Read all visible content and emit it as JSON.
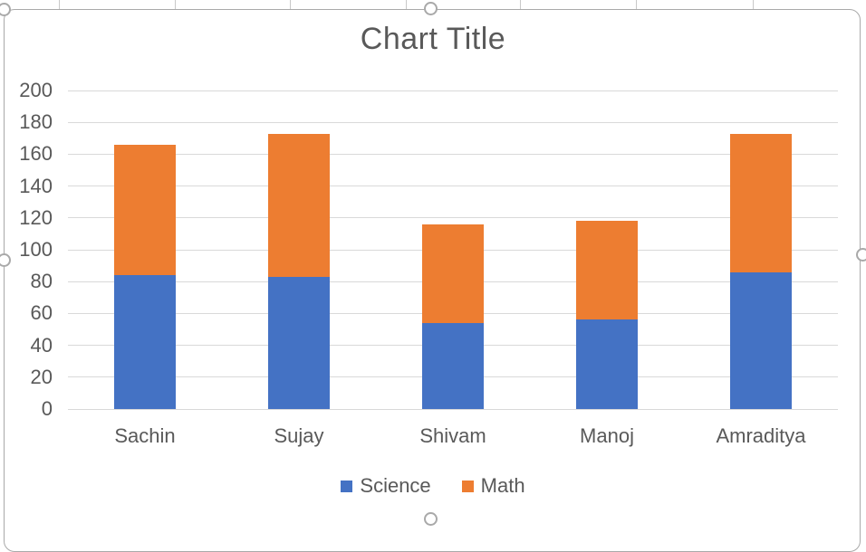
{
  "title": "Chart Title",
  "colors": {
    "science": "#4472C4",
    "math": "#ED7D31",
    "gridline": "#D9D9D9",
    "text": "#595959",
    "frame_border": "#A9A9A9"
  },
  "legend": {
    "items": [
      {
        "label": "Science",
        "color": "#4472C4"
      },
      {
        "label": "Math",
        "color": "#ED7D31"
      }
    ]
  },
  "chart_data": {
    "type": "bar",
    "stacked": true,
    "title": "Chart Title",
    "categories": [
      "Sachin",
      "Sujay",
      "Shivam",
      "Manoj",
      "Amraditya"
    ],
    "series": [
      {
        "name": "Science",
        "color": "#4472C4",
        "values": [
          84,
          83,
          54,
          56,
          86
        ]
      },
      {
        "name": "Math",
        "color": "#ED7D31",
        "values": [
          82,
          90,
          62,
          62,
          87
        ]
      }
    ],
    "totals": [
      166,
      173,
      116,
      118,
      173
    ],
    "xlabel": "",
    "ylabel": "",
    "ylim": [
      0,
      200
    ],
    "ytick_step": 20,
    "yticks": [
      0,
      20,
      40,
      60,
      80,
      100,
      120,
      140,
      160,
      180,
      200
    ],
    "grid": true,
    "legend_position": "bottom"
  }
}
